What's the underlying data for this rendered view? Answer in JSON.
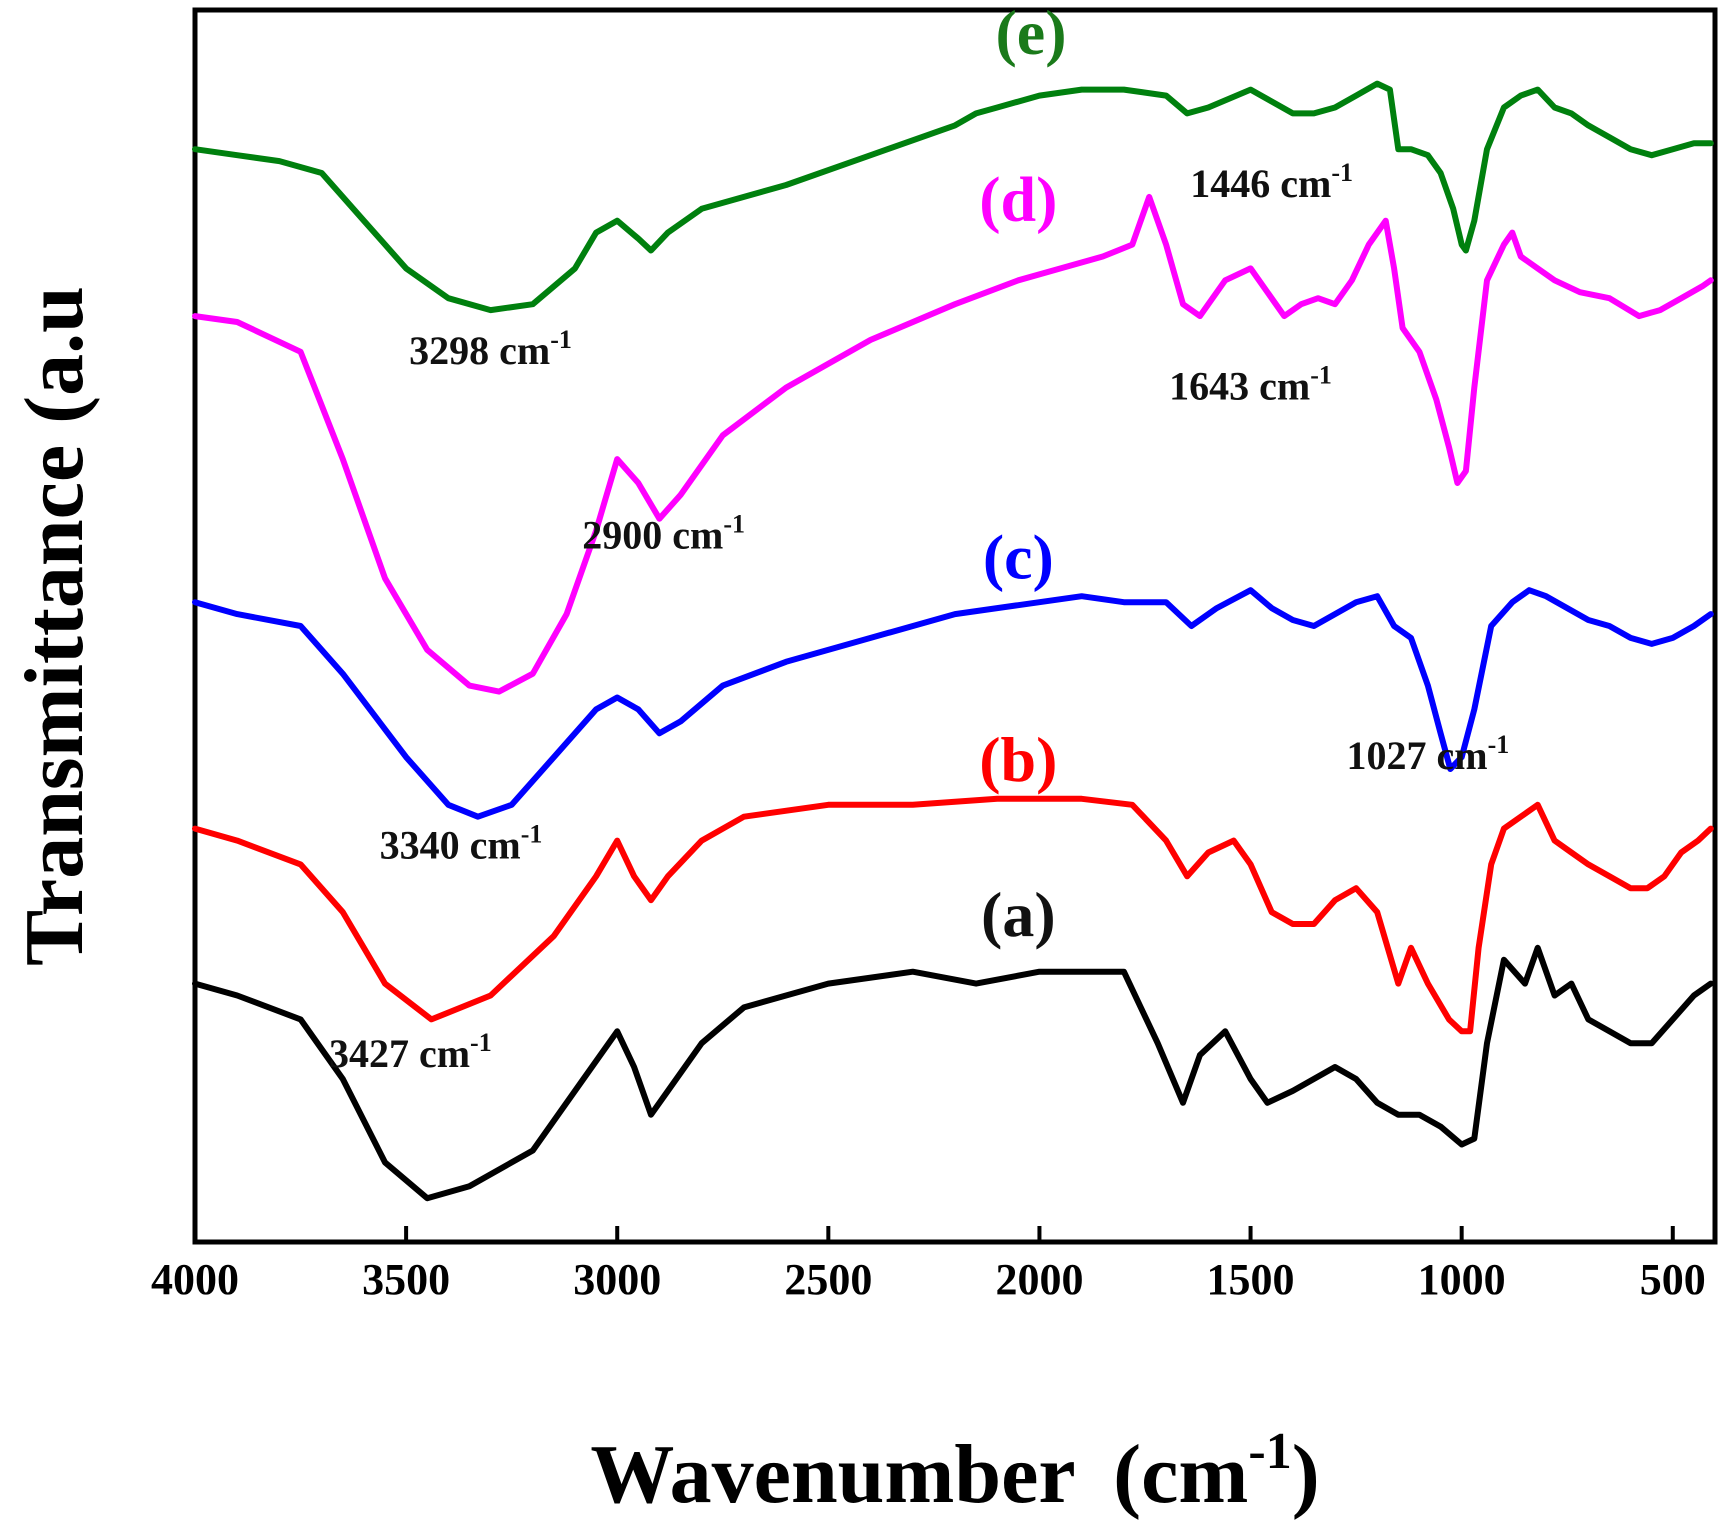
{
  "chart_data": {
    "type": "line",
    "title": "",
    "xlabel": "Wavenumber",
    "xlabel_unit_base": "(cm",
    "xlabel_unit_sup": "-1",
    "xlabel_unit_close": ")",
    "ylabel": "Transmittance (a.u",
    "xlim": [
      4000,
      400
    ],
    "xticks": [
      4000,
      3500,
      3000,
      2500,
      2000,
      1500,
      1000,
      500
    ],
    "ylim": [
      0,
      10
    ],
    "yaxis_ticks": "none",
    "grid": false,
    "legend": "none",
    "series": [
      {
        "name": "(a)",
        "color": "#000000",
        "points": [
          [
            4000,
            2.0
          ],
          [
            3900,
            1.9
          ],
          [
            3750,
            1.7
          ],
          [
            3650,
            1.2
          ],
          [
            3550,
            0.5
          ],
          [
            3450,
            0.2
          ],
          [
            3350,
            0.3
          ],
          [
            3200,
            0.6
          ],
          [
            3080,
            1.2
          ],
          [
            3000,
            1.6
          ],
          [
            2960,
            1.3
          ],
          [
            2920,
            0.9
          ],
          [
            2880,
            1.1
          ],
          [
            2800,
            1.5
          ],
          [
            2700,
            1.8
          ],
          [
            2500,
            2.0
          ],
          [
            2300,
            2.1
          ],
          [
            2150,
            2.0
          ],
          [
            2000,
            2.1
          ],
          [
            1800,
            2.1
          ],
          [
            1720,
            1.5
          ],
          [
            1660,
            1.0
          ],
          [
            1620,
            1.4
          ],
          [
            1560,
            1.6
          ],
          [
            1500,
            1.2
          ],
          [
            1460,
            1.0
          ],
          [
            1400,
            1.1
          ],
          [
            1300,
            1.3
          ],
          [
            1250,
            1.2
          ],
          [
            1200,
            1.0
          ],
          [
            1150,
            0.9
          ],
          [
            1100,
            0.9
          ],
          [
            1050,
            0.8
          ],
          [
            1000,
            0.65
          ],
          [
            970,
            0.7
          ],
          [
            940,
            1.5
          ],
          [
            900,
            2.2
          ],
          [
            850,
            2.0
          ],
          [
            820,
            2.3
          ],
          [
            780,
            1.9
          ],
          [
            740,
            2.0
          ],
          [
            700,
            1.7
          ],
          [
            650,
            1.6
          ],
          [
            600,
            1.5
          ],
          [
            550,
            1.5
          ],
          [
            500,
            1.7
          ],
          [
            450,
            1.9
          ],
          [
            410,
            2.0
          ]
        ]
      },
      {
        "name": "(b)",
        "color": "#ff0000",
        "points": [
          [
            4000,
            3.3
          ],
          [
            3900,
            3.2
          ],
          [
            3750,
            3.0
          ],
          [
            3650,
            2.6
          ],
          [
            3550,
            2.0
          ],
          [
            3440,
            1.7
          ],
          [
            3300,
            1.9
          ],
          [
            3150,
            2.4
          ],
          [
            3050,
            2.9
          ],
          [
            3000,
            3.2
          ],
          [
            2960,
            2.9
          ],
          [
            2920,
            2.7
          ],
          [
            2880,
            2.9
          ],
          [
            2800,
            3.2
          ],
          [
            2700,
            3.4
          ],
          [
            2500,
            3.5
          ],
          [
            2300,
            3.5
          ],
          [
            2100,
            3.55
          ],
          [
            1900,
            3.55
          ],
          [
            1780,
            3.5
          ],
          [
            1700,
            3.2
          ],
          [
            1650,
            2.9
          ],
          [
            1600,
            3.1
          ],
          [
            1540,
            3.2
          ],
          [
            1500,
            3.0
          ],
          [
            1450,
            2.6
          ],
          [
            1400,
            2.5
          ],
          [
            1350,
            2.5
          ],
          [
            1300,
            2.7
          ],
          [
            1250,
            2.8
          ],
          [
            1200,
            2.6
          ],
          [
            1150,
            2.0
          ],
          [
            1120,
            2.3
          ],
          [
            1080,
            2.0
          ],
          [
            1030,
            1.7
          ],
          [
            1000,
            1.6
          ],
          [
            980,
            1.6
          ],
          [
            960,
            2.3
          ],
          [
            930,
            3.0
          ],
          [
            900,
            3.3
          ],
          [
            860,
            3.4
          ],
          [
            820,
            3.5
          ],
          [
            780,
            3.2
          ],
          [
            740,
            3.1
          ],
          [
            700,
            3.0
          ],
          [
            650,
            2.9
          ],
          [
            600,
            2.8
          ],
          [
            560,
            2.8
          ],
          [
            520,
            2.9
          ],
          [
            480,
            3.1
          ],
          [
            440,
            3.2
          ],
          [
            410,
            3.3
          ]
        ]
      },
      {
        "name": "(c)",
        "color": "#0000ff",
        "points": [
          [
            4000,
            5.2
          ],
          [
            3900,
            5.1
          ],
          [
            3750,
            5.0
          ],
          [
            3650,
            4.6
          ],
          [
            3500,
            3.9
          ],
          [
            3400,
            3.5
          ],
          [
            3330,
            3.4
          ],
          [
            3250,
            3.5
          ],
          [
            3150,
            3.9
          ],
          [
            3050,
            4.3
          ],
          [
            3000,
            4.4
          ],
          [
            2950,
            4.3
          ],
          [
            2900,
            4.1
          ],
          [
            2850,
            4.2
          ],
          [
            2750,
            4.5
          ],
          [
            2600,
            4.7
          ],
          [
            2400,
            4.9
          ],
          [
            2200,
            5.1
          ],
          [
            2100,
            5.15
          ],
          [
            2000,
            5.2
          ],
          [
            1900,
            5.25
          ],
          [
            1800,
            5.2
          ],
          [
            1700,
            5.2
          ],
          [
            1640,
            5.0
          ],
          [
            1580,
            5.15
          ],
          [
            1500,
            5.3
          ],
          [
            1450,
            5.15
          ],
          [
            1400,
            5.05
          ],
          [
            1350,
            5.0
          ],
          [
            1300,
            5.1
          ],
          [
            1250,
            5.2
          ],
          [
            1200,
            5.25
          ],
          [
            1160,
            5.0
          ],
          [
            1120,
            4.9
          ],
          [
            1080,
            4.5
          ],
          [
            1050,
            4.1
          ],
          [
            1027,
            3.8
          ],
          [
            1000,
            3.9
          ],
          [
            970,
            4.3
          ],
          [
            930,
            5.0
          ],
          [
            880,
            5.2
          ],
          [
            840,
            5.3
          ],
          [
            800,
            5.25
          ],
          [
            750,
            5.15
          ],
          [
            700,
            5.05
          ],
          [
            650,
            5.0
          ],
          [
            600,
            4.9
          ],
          [
            550,
            4.85
          ],
          [
            500,
            4.9
          ],
          [
            450,
            5.0
          ],
          [
            410,
            5.1
          ]
        ]
      },
      {
        "name": "(d)",
        "color": "#ff00ff",
        "points": [
          [
            4000,
            7.6
          ],
          [
            3900,
            7.55
          ],
          [
            3750,
            7.3
          ],
          [
            3650,
            6.4
          ],
          [
            3550,
            5.4
          ],
          [
            3450,
            4.8
          ],
          [
            3350,
            4.5
          ],
          [
            3280,
            4.45
          ],
          [
            3200,
            4.6
          ],
          [
            3120,
            5.1
          ],
          [
            3050,
            5.8
          ],
          [
            3000,
            6.4
          ],
          [
            2950,
            6.2
          ],
          [
            2900,
            5.9
          ],
          [
            2850,
            6.1
          ],
          [
            2750,
            6.6
          ],
          [
            2600,
            7.0
          ],
          [
            2400,
            7.4
          ],
          [
            2200,
            7.7
          ],
          [
            2050,
            7.9
          ],
          [
            1950,
            8.0
          ],
          [
            1850,
            8.1
          ],
          [
            1780,
            8.2
          ],
          [
            1740,
            8.6
          ],
          [
            1700,
            8.2
          ],
          [
            1660,
            7.7
          ],
          [
            1620,
            7.6
          ],
          [
            1560,
            7.9
          ],
          [
            1500,
            8.0
          ],
          [
            1460,
            7.8
          ],
          [
            1420,
            7.6
          ],
          [
            1380,
            7.7
          ],
          [
            1340,
            7.75
          ],
          [
            1300,
            7.7
          ],
          [
            1260,
            7.9
          ],
          [
            1220,
            8.2
          ],
          [
            1180,
            8.4
          ],
          [
            1160,
            8.0
          ],
          [
            1140,
            7.5
          ],
          [
            1100,
            7.3
          ],
          [
            1060,
            6.9
          ],
          [
            1030,
            6.5
          ],
          [
            1010,
            6.2
          ],
          [
            990,
            6.3
          ],
          [
            970,
            7.0
          ],
          [
            940,
            7.9
          ],
          [
            900,
            8.2
          ],
          [
            880,
            8.3
          ],
          [
            860,
            8.1
          ],
          [
            820,
            8.0
          ],
          [
            780,
            7.9
          ],
          [
            720,
            7.8
          ],
          [
            650,
            7.75
          ],
          [
            580,
            7.6
          ],
          [
            530,
            7.65
          ],
          [
            480,
            7.75
          ],
          [
            430,
            7.85
          ],
          [
            410,
            7.9
          ]
        ]
      },
      {
        "name": "(e)",
        "color": "#00800e",
        "points": [
          [
            4000,
            9.0
          ],
          [
            3900,
            8.95
          ],
          [
            3800,
            8.9
          ],
          [
            3700,
            8.8
          ],
          [
            3600,
            8.4
          ],
          [
            3500,
            8.0
          ],
          [
            3400,
            7.75
          ],
          [
            3300,
            7.65
          ],
          [
            3200,
            7.7
          ],
          [
            3100,
            8.0
          ],
          [
            3050,
            8.3
          ],
          [
            3000,
            8.4
          ],
          [
            2950,
            8.25
          ],
          [
            2920,
            8.15
          ],
          [
            2880,
            8.3
          ],
          [
            2800,
            8.5
          ],
          [
            2600,
            8.7
          ],
          [
            2400,
            8.95
          ],
          [
            2200,
            9.2
          ],
          [
            2150,
            9.3
          ],
          [
            2100,
            9.35
          ],
          [
            2000,
            9.45
          ],
          [
            1900,
            9.5
          ],
          [
            1800,
            9.5
          ],
          [
            1700,
            9.45
          ],
          [
            1650,
            9.3
          ],
          [
            1600,
            9.35
          ],
          [
            1500,
            9.5
          ],
          [
            1450,
            9.4
          ],
          [
            1400,
            9.3
          ],
          [
            1350,
            9.3
          ],
          [
            1300,
            9.35
          ],
          [
            1250,
            9.45
          ],
          [
            1200,
            9.55
          ],
          [
            1170,
            9.5
          ],
          [
            1150,
            9.0
          ],
          [
            1120,
            9.0
          ],
          [
            1080,
            8.95
          ],
          [
            1050,
            8.8
          ],
          [
            1020,
            8.5
          ],
          [
            1000,
            8.2
          ],
          [
            990,
            8.15
          ],
          [
            970,
            8.4
          ],
          [
            940,
            9.0
          ],
          [
            900,
            9.35
          ],
          [
            860,
            9.45
          ],
          [
            820,
            9.5
          ],
          [
            780,
            9.35
          ],
          [
            740,
            9.3
          ],
          [
            700,
            9.2
          ],
          [
            650,
            9.1
          ],
          [
            600,
            9.0
          ],
          [
            550,
            8.95
          ],
          [
            500,
            9.0
          ],
          [
            450,
            9.05
          ],
          [
            410,
            9.05
          ]
        ]
      }
    ],
    "series_labels": [
      {
        "text": "(e)",
        "x": 2020,
        "y": 9.8,
        "color": "#1a7a1a"
      },
      {
        "text": "(d)",
        "x": 2050,
        "y": 8.4,
        "color": "#ff00ff"
      },
      {
        "text": "(c)",
        "x": 2050,
        "y": 5.4,
        "color": "#0000ff"
      },
      {
        "text": "(b)",
        "x": 2050,
        "y": 3.7,
        "color": "#ff0000"
      },
      {
        "text": "(a)",
        "x": 2050,
        "y": 2.4,
        "color": "#111111"
      }
    ],
    "annotations": [
      {
        "num": "3298",
        "unit": "cm",
        "sup": "-1",
        "x": 3300,
        "y": 7.2
      },
      {
        "num": "1446",
        "unit": "cm",
        "sup": "-1",
        "x": 1450,
        "y": 8.6
      },
      {
        "num": "1643",
        "unit": "cm",
        "sup": "-1",
        "x": 1500,
        "y": 6.9
      },
      {
        "num": "2900",
        "unit": "cm",
        "sup": "-1",
        "x": 2890,
        "y": 5.65
      },
      {
        "num": "1027",
        "unit": "cm",
        "sup": "-1",
        "x": 1080,
        "y": 3.8
      },
      {
        "num": "3340",
        "unit": "cm",
        "sup": "-1",
        "x": 3370,
        "y": 3.05
      },
      {
        "num": "3427",
        "unit": "cm",
        "sup": "-1",
        "x": 3490,
        "y": 1.3
      }
    ]
  }
}
